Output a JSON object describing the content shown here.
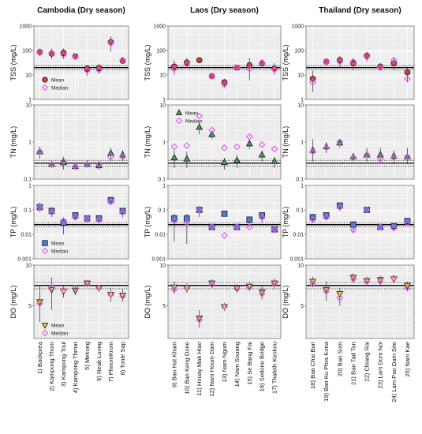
{
  "chart_data": {
    "type": "scatter",
    "columns": [
      {
        "title": "Cambodia (Dry season)",
        "categories": [
          "1) Backprea",
          "2) Kampong Thom",
          "3) Kampong Toul",
          "4) Kampong Thmar",
          "5) Mekong",
          "6) Neak Luong",
          "7) PhnomKrom",
          "8) Tonle Sap"
        ]
      },
      {
        "title": "Laos (Dry season)",
        "categories": [
          "9) Ban Hat Kham",
          "10) Ban Keng Done",
          "11) Houay Mak Hiao",
          "12) Nam Houm Dam",
          "13) Nam Ngum",
          "14) Nam Souang",
          "15) Se Bang Fai",
          "16) Sedone Bridge",
          "17) Thaleth Keokou"
        ]
      },
      {
        "title": "Thailand (Dry season)",
        "categories": [
          "18) Ban Chai Buri",
          "19) Ban Ku Phra Kona",
          "20) Ban Som",
          "21) Ban Tad Ton",
          "22) Chiang Rai",
          "23) Lam Dom Noi",
          "24) Lam Pao Dam Site",
          "25) Nam Kae"
        ]
      }
    ],
    "rows": [
      {
        "ylabel": "TSS (mg/L)",
        "scale": "log",
        "ylim": [
          1,
          1000
        ],
        "ticks": [
          {
            "v": 1,
            "t": "1"
          },
          {
            "v": 10,
            "t": "10"
          },
          {
            "v": 100,
            "t": "100"
          },
          {
            "v": 1000,
            "t": "1000"
          }
        ],
        "marker": "circle",
        "mean_color": "#e03a3a",
        "standard": 20,
        "standard_band": [
          16,
          24
        ],
        "legend": {
          "mean": "Mean",
          "median": "Median"
        },
        "legend_column": 0,
        "data": [
          [
            [
              85,
              80,
              65,
              120
            ],
            [
              75,
              80,
              45,
              120
            ],
            [
              80,
              65,
              45,
              120
            ],
            [
              58,
              55,
              45,
              70
            ],
            [
              18,
              15,
              9,
              25
            ],
            [
              19,
              16,
              11,
              28
            ],
            [
              220,
              200,
              90,
              380
            ],
            [
              38,
              40,
              28,
              55
            ]
          ],
          [
            [
              22,
              18,
              10,
              40
            ],
            [
              32,
              28,
              20,
              50
            ],
            [
              40,
              null,
              null,
              null
            ],
            [
              9,
              9,
              7,
              12
            ],
            [
              5,
              4,
              3,
              7
            ],
            [
              20,
              20,
              null,
              null
            ],
            [
              25,
              18,
              6,
              50
            ],
            [
              30,
              32,
              20,
              45
            ],
            [
              18,
              17,
              10,
              30
            ]
          ],
          [
            [
              7,
              5,
              2,
              15
            ],
            [
              35,
              35,
              25,
              45
            ],
            [
              40,
              35,
              20,
              60
            ],
            [
              30,
              35,
              15,
              50
            ],
            [
              60,
              55,
              35,
              90
            ],
            [
              22,
              20,
              15,
              30
            ],
            [
              30,
              40,
              15,
              55
            ],
            [
              13,
              7,
              5,
              22
            ]
          ]
        ]
      },
      {
        "ylabel": "TN (mg/L)",
        "scale": "log",
        "ylim": [
          0.1,
          10
        ],
        "ticks": [
          {
            "v": 0.1,
            "t": "0.1"
          },
          {
            "v": 1,
            "t": "1"
          },
          {
            "v": 10,
            "t": "10"
          }
        ],
        "marker": "triangle-up",
        "mean_color": "#4e9a6a",
        "standard": 0.27,
        "standard_band": [
          0.22,
          0.32
        ],
        "legend": {
          "mean": "Mean",
          "median": "Median"
        },
        "legend_column": 1,
        "data": [
          [
            [
              0.55,
              0.55,
              0.35,
              0.75
            ],
            [
              0.25,
              0.25,
              0.2,
              0.3
            ],
            [
              0.28,
              0.3,
              0.18,
              0.4
            ],
            [
              0.22,
              0.22,
              0.17,
              0.28
            ],
            [
              0.25,
              0.25,
              0.2,
              0.32
            ],
            [
              0.23,
              0.25,
              0.18,
              0.3
            ],
            [
              0.5,
              0.4,
              0.3,
              0.7
            ],
            [
              0.45,
              0.4,
              0.3,
              0.6
            ]
          ],
          [
            [
              0.38,
              0.75,
              0.2,
              0.6
            ],
            [
              0.35,
              0.8,
              0.2,
              0.55
            ],
            [
              2.5,
              5,
              1.6,
              3.5
            ],
            [
              1.6,
              2.1,
              1.2,
              2
            ],
            [
              0.28,
              0.7,
              0.18,
              0.38
            ],
            [
              0.32,
              0.75,
              0.2,
              0.45
            ],
            [
              0.9,
              1.4,
              0.65,
              1.2
            ],
            [
              0.45,
              0.85,
              0.3,
              0.6
            ],
            [
              0.3,
              0.65,
              0.2,
              0.4
            ]
          ],
          [
            [
              0.6,
              0.55,
              0.3,
              1.2
            ],
            [
              0.75,
              0.7,
              0.5,
              1
            ],
            [
              0.95,
              1,
              0.7,
              1.2
            ],
            [
              0.4,
              0.38,
              0.3,
              0.5
            ],
            [
              0.45,
              0.45,
              0.3,
              0.7
            ],
            [
              0.45,
              0.35,
              0.3,
              0.7
            ],
            [
              0.42,
              0.38,
              0.25,
              0.6
            ],
            [
              0.4,
              0.4,
              0.25,
              0.7
            ]
          ]
        ]
      },
      {
        "ylabel": "TP (mg/L)",
        "scale": "log",
        "ylim": [
          0.001,
          1
        ],
        "ticks": [
          {
            "v": 0.001,
            "t": "0.001"
          },
          {
            "v": 0.01,
            "t": "0.01"
          },
          {
            "v": 0.1,
            "t": "0.1"
          },
          {
            "v": 1,
            "t": "1"
          }
        ],
        "marker": "square",
        "mean_color": "#4a7ee0",
        "standard": 0.025,
        "standard_band": [
          0.021,
          0.029
        ],
        "legend": {
          "mean": "Mean",
          "median": "Median"
        },
        "legend_column": 0,
        "data": [
          [
            [
              0.13,
              0.13,
              0.08,
              0.2
            ],
            [
              0.09,
              0.08,
              0.05,
              0.13
            ],
            [
              0.03,
              0.035,
              0.01,
              0.05
            ],
            [
              0.06,
              0.05,
              0.04,
              0.08
            ],
            [
              0.045,
              0.045,
              0.03,
              0.06
            ],
            [
              0.045,
              0.04,
              0.03,
              0.06
            ],
            [
              0.25,
              0.22,
              0.15,
              0.35
            ],
            [
              0.09,
              0.08,
              0.05,
              0.12
            ]
          ],
          [
            [
              0.045,
              0.035,
              0.005,
              0.07
            ],
            [
              0.045,
              0.03,
              0.004,
              0.07
            ],
            [
              0.1,
              0.1,
              0.05,
              0.15
            ],
            [
              0.02,
              0.02,
              0.016,
              0.025
            ],
            [
              0.07,
              0.009,
              null,
              null
            ],
            [
              0.02,
              0.02,
              0.016,
              0.025
            ],
            [
              0.04,
              0.02,
              0.02,
              0.05
            ],
            [
              0.06,
              0.05,
              0.03,
              0.08
            ],
            [
              0.016,
              0.016,
              0.013,
              0.02
            ]
          ],
          [
            [
              0.05,
              0.04,
              0.03,
              0.07
            ],
            [
              0.06,
              0.05,
              0.04,
              0.08
            ],
            [
              0.15,
              0.13,
              0.09,
              0.2
            ],
            [
              0.025,
              0.015,
              0.012,
              0.035
            ],
            [
              0.1,
              0.1,
              0.08,
              0.12
            ],
            [
              0.02,
              0.02,
              0.015,
              0.025
            ],
            [
              0.022,
              0.018,
              0.015,
              0.03
            ],
            [
              0.035,
              0.03,
              0.025,
              0.045
            ]
          ]
        ]
      },
      {
        "ylabel": "DO (mg/L)",
        "scale": "linear",
        "ylim": [
          1,
          10
        ],
        "ticks": [
          {
            "v": 5,
            "t": "5"
          },
          {
            "v": 10,
            "t": "10"
          }
        ],
        "marker": "triangle-down",
        "mean_color": "#f2d12a",
        "standard": 7.5,
        "standard_band": [
          7.1,
          7.9
        ],
        "legend": {
          "mean": "Mean",
          "median": "Median"
        },
        "legend_column": 0,
        "data": [
          [
            [
              5.5,
              5.3,
              3,
              7.5
            ],
            [
              7,
              7.3,
              4.5,
              8.5
            ],
            [
              6.8,
              6.9,
              6,
              7.5
            ],
            [
              6.9,
              7.2,
              6.3,
              7.6
            ],
            [
              7.8,
              7.7,
              7.3,
              8.2
            ],
            [
              7.2,
              7.2,
              6.8,
              7.6
            ],
            [
              6.4,
              6.4,
              5.5,
              7.2
            ],
            [
              6.3,
              6.2,
              5.5,
              7.1
            ]
          ],
          [
            [
              7.3,
              7,
              6.5,
              8
            ],
            [
              7.2,
              7.2,
              6.6,
              7.8
            ],
            [
              3.5,
              3.3,
              2.3,
              4.5
            ],
            [
              7.8,
              7.6,
              7.2,
              8.3
            ],
            [
              4.9,
              4.9,
              4.4,
              5.4
            ],
            [
              7.2,
              7.1,
              6.6,
              7.7
            ],
            [
              7.4,
              7.3,
              6.8,
              8
            ],
            [
              6.7,
              6.5,
              5.8,
              7.4
            ],
            [
              7.8,
              7.7,
              7.1,
              8.4
            ]
          ],
          [
            [
              8,
              7.7,
              7.3,
              8.6
            ],
            [
              7,
              6.8,
              5.6,
              8
            ],
            [
              6.5,
              6,
              5,
              7.2
            ],
            [
              8.5,
              8.3,
              7.8,
              9
            ],
            [
              8.1,
              8,
              7.6,
              8.6
            ],
            [
              8.2,
              8,
              7.4,
              8.7
            ],
            [
              8.3,
              8.4,
              7.8,
              8.8
            ],
            [
              7.5,
              7.2,
              6.8,
              8
            ]
          ]
        ]
      }
    ]
  }
}
